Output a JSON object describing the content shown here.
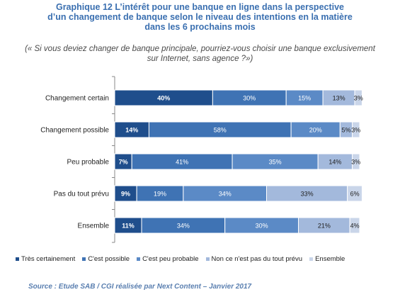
{
  "title_lines": [
    "Graphique 12 L’intérêt pour une banque en ligne dans la perspective",
    "d’un changement de banque selon le niveau des intentions en la matière",
    "dans les 6 prochains mois"
  ],
  "subtitle_lines": [
    "(« Si vous deviez changer de banque principale, pourriez-vous choisir une banque exclusivement",
    "sur Internet, sans agence ?»)"
  ],
  "source": "Source : Etude SAB / CGI réalisée par Next Content – Janvier 2017",
  "colors": {
    "series": [
      "#1f4e8c",
      "#3f73b4",
      "#5b8ac6",
      "#a3b9dc",
      "#c9d5e9"
    ],
    "label_on_dark": "#ffffff",
    "label_on_light": "#222222"
  },
  "chart_data": {
    "type": "bar",
    "orientation": "horizontal",
    "stacked": true,
    "percent": true,
    "categories": [
      "Changement certain",
      "Changement possible",
      "Peu probable",
      "Pas du tout prévu",
      "Ensemble"
    ],
    "series": [
      {
        "name": "Très certainement",
        "values": [
          40,
          14,
          7,
          9,
          11
        ]
      },
      {
        "name": "C'est possible",
        "values": [
          30,
          58,
          41,
          19,
          34
        ]
      },
      {
        "name": "C'est peu probable",
        "values": [
          15,
          20,
          35,
          34,
          30
        ]
      },
      {
        "name": "Non ce n'est pas du tout prévu",
        "values": [
          13,
          5,
          14,
          33,
          21
        ]
      },
      {
        "name": "Ensemble",
        "values": [
          3,
          3,
          3,
          6,
          4
        ]
      }
    ],
    "xlim": [
      0,
      100
    ],
    "grid": false,
    "legend_position": "bottom"
  }
}
